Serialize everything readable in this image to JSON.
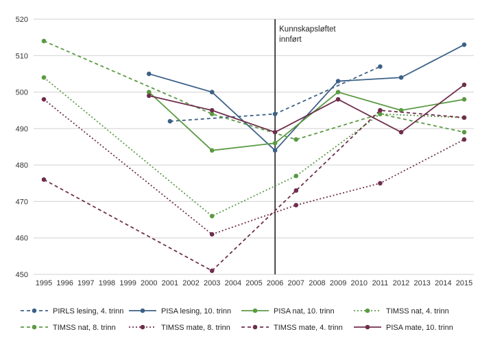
{
  "chart_data": {
    "type": "line",
    "x_categories": [
      "1995",
      "1996",
      "1997",
      "1998",
      "1999",
      "2000",
      "2001",
      "2002",
      "2003",
      "2004",
      "2005",
      "2006",
      "2007",
      "2008",
      "2009",
      "2010",
      "2011",
      "2012",
      "2013",
      "2014",
      "2015"
    ],
    "ylim": [
      450,
      520
    ],
    "yticks": [
      450,
      460,
      470,
      480,
      490,
      500,
      510,
      520
    ],
    "grid": "horizontal",
    "legend_position": "bottom",
    "annotation": {
      "x": "2006",
      "lines": [
        "Kunnskapsløftet",
        "innført"
      ]
    },
    "series": [
      {
        "name": "PIRLS lesing, 4. trinn",
        "color": "#3c6187",
        "style": "dashed",
        "points": [
          [
            "2001",
            492
          ],
          [
            "2006",
            494
          ],
          [
            "2011",
            507
          ]
        ]
      },
      {
        "name": "PISA lesing, 10. trinn",
        "color": "#3c6187",
        "style": "solid",
        "points": [
          [
            "2000",
            505
          ],
          [
            "2003",
            500
          ],
          [
            "2006",
            484
          ],
          [
            "2009",
            503
          ],
          [
            "2012",
            504
          ],
          [
            "2015",
            513
          ]
        ]
      },
      {
        "name": "PISA nat, 10. trinn",
        "color": "#5a9a42",
        "style": "solid",
        "points": [
          [
            "2000",
            500
          ],
          [
            "2003",
            484
          ],
          [
            "2006",
            486
          ],
          [
            "2009",
            500
          ],
          [
            "2012",
            495
          ],
          [
            "2015",
            498
          ]
        ]
      },
      {
        "name": "TIMSS nat, 4. trinn",
        "color": "#5a9a42",
        "style": "dotted",
        "points": [
          [
            "1995",
            504
          ],
          [
            "2003",
            466
          ],
          [
            "2007",
            477
          ],
          [
            "2011",
            494
          ],
          [
            "2015",
            493
          ]
        ]
      },
      {
        "name": "TIMSS nat, 8. trinn",
        "color": "#5a9a42",
        "style": "dashed",
        "points": [
          [
            "1995",
            514
          ],
          [
            "2003",
            494
          ],
          [
            "2007",
            487
          ],
          [
            "2011",
            494
          ],
          [
            "2015",
            489
          ]
        ]
      },
      {
        "name": "TIMSS mate, 8. trinn",
        "color": "#6e2e4b",
        "style": "dotted",
        "points": [
          [
            "1995",
            498
          ],
          [
            "2003",
            461
          ],
          [
            "2007",
            469
          ],
          [
            "2011",
            475
          ],
          [
            "2015",
            487
          ]
        ]
      },
      {
        "name": "TIMSS mate, 4. trinn",
        "color": "#6e2e4b",
        "style": "dashed",
        "points": [
          [
            "1995",
            476
          ],
          [
            "2003",
            451
          ],
          [
            "2007",
            473
          ],
          [
            "2011",
            495
          ],
          [
            "2015",
            493
          ]
        ]
      },
      {
        "name": "PISA mate, 10. trinn",
        "color": "#6e2e4b",
        "style": "solid",
        "points": [
          [
            "2000",
            499
          ],
          [
            "2003",
            495
          ],
          [
            "2006",
            489
          ],
          [
            "2009",
            498
          ],
          [
            "2012",
            489
          ],
          [
            "2015",
            502
          ]
        ]
      }
    ]
  }
}
